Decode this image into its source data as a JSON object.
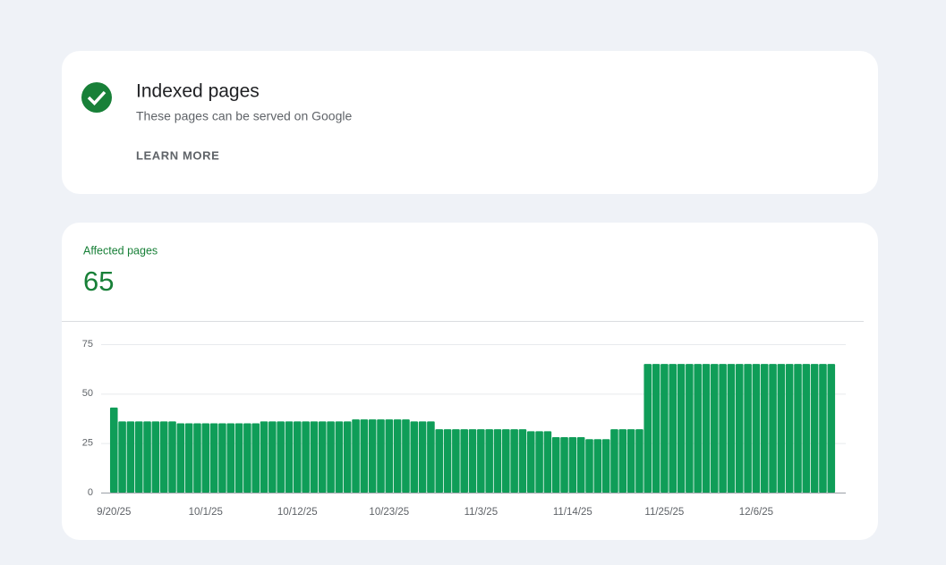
{
  "header": {
    "title": "Indexed pages",
    "subtitle": "These pages can be served on Google",
    "link": "LEARN MORE"
  },
  "summary": {
    "label": "Affected pages",
    "value": 65
  },
  "chart_data": {
    "type": "bar",
    "color": "#0f9d58",
    "grid": true,
    "categories": [
      "9/20/25",
      null,
      null,
      null,
      null,
      null,
      null,
      null,
      null,
      null,
      null,
      "10/1/25",
      null,
      null,
      null,
      null,
      null,
      null,
      null,
      null,
      null,
      null,
      "10/12/25",
      null,
      null,
      null,
      null,
      null,
      null,
      null,
      null,
      null,
      null,
      "10/23/25",
      null,
      null,
      null,
      null,
      null,
      null,
      null,
      null,
      null,
      null,
      "11/3/25",
      null,
      null,
      null,
      null,
      null,
      null,
      null,
      null,
      null,
      null,
      "11/14/25",
      null,
      null,
      null,
      null,
      null,
      null,
      null,
      null,
      null,
      null,
      "11/25/25",
      null,
      null,
      null,
      null,
      null,
      null,
      null,
      null,
      null,
      null,
      "12/6/25",
      null,
      null,
      null,
      null,
      null,
      null,
      null,
      null,
      null
    ],
    "values": [
      43,
      36,
      36,
      36,
      36,
      36,
      36,
      36,
      35,
      35,
      35,
      35,
      35,
      35,
      35,
      35,
      35,
      35,
      36,
      36,
      36,
      36,
      36,
      36,
      36,
      36,
      36,
      36,
      36,
      37,
      37,
      37,
      37,
      37,
      37,
      37,
      36,
      36,
      36,
      32,
      32,
      32,
      32,
      32,
      32,
      32,
      32,
      32,
      32,
      32,
      31,
      31,
      31,
      28,
      28,
      28,
      28,
      27,
      27,
      27,
      32,
      32,
      32,
      32,
      65,
      65,
      65,
      65,
      65,
      65,
      65,
      65,
      65,
      65,
      65,
      65,
      65,
      65,
      65,
      65,
      65,
      65,
      65,
      65,
      65,
      65,
      65
    ],
    "ylim": [
      0,
      75
    ],
    "yticks": [
      0,
      25,
      50,
      75
    ]
  }
}
